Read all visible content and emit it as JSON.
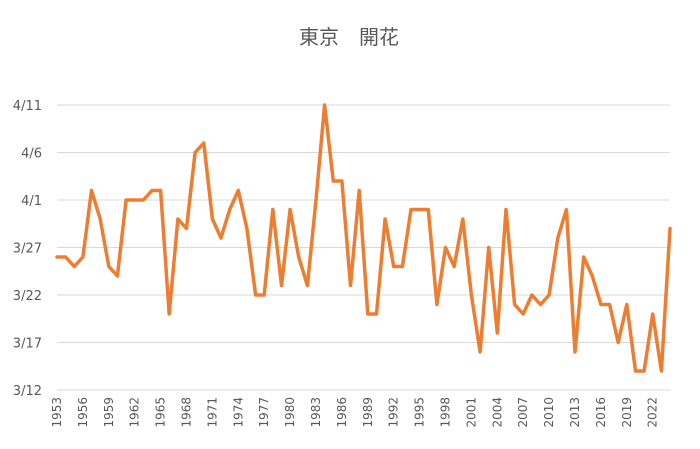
{
  "chart_data": {
    "type": "line",
    "title": "東京　開花",
    "xlabel": "",
    "ylabel": "",
    "x_tick_labels": [
      "1953",
      "1956",
      "1959",
      "1962",
      "1965",
      "1968",
      "1971",
      "1974",
      "1977",
      "1980",
      "1983",
      "1986",
      "1989",
      "1992",
      "1995",
      "1998",
      "2001",
      "2004",
      "2007",
      "2010",
      "2013",
      "2016",
      "2019",
      "2022"
    ],
    "y_tick_labels": [
      "3/12",
      "3/17",
      "3/22",
      "3/27",
      "4/1",
      "4/6",
      "4/11"
    ],
    "y_tick_values": [
      71,
      76,
      81,
      86,
      91,
      96,
      101
    ],
    "ylim": [
      71,
      101
    ],
    "xlim": [
      1953,
      2024
    ],
    "grid": true,
    "legend": "none",
    "color": "#ed7d31",
    "series": [
      {
        "x": [
          1953,
          1954,
          1955,
          1956,
          1957,
          1958,
          1959,
          1960,
          1961,
          1962,
          1963,
          1964,
          1965,
          1966,
          1967,
          1968,
          1969,
          1970,
          1971,
          1972,
          1973,
          1974,
          1975,
          1976,
          1977,
          1978,
          1979,
          1980,
          1981,
          1982,
          1983,
          1984,
          1985,
          1986,
          1987,
          1988,
          1989,
          1990,
          1991,
          1992,
          1993,
          1994,
          1995,
          1996,
          1997,
          1998,
          1999,
          2000,
          2001,
          2002,
          2003,
          2004,
          2005,
          2006,
          2007,
          2008,
          2009,
          2010,
          2011,
          2012,
          2013,
          2014,
          2015,
          2016,
          2017,
          2018,
          2019,
          2020,
          2021,
          2022,
          2023,
          2024
        ],
        "values": [
          85,
          85,
          84,
          85,
          92,
          89,
          84,
          83,
          91,
          91,
          91,
          92,
          92,
          79,
          89,
          88,
          96,
          97,
          89,
          87,
          90,
          92,
          88,
          81,
          81,
          90,
          82,
          90,
          85,
          82,
          91,
          101,
          93,
          93,
          82,
          92,
          79,
          79,
          89,
          84,
          84,
          90,
          90,
          90,
          80,
          86,
          84,
          89,
          81,
          75,
          86,
          77,
          90,
          80,
          79,
          81,
          80,
          81,
          87,
          90,
          75,
          85,
          83,
          80,
          80,
          76,
          80,
          73,
          73,
          79,
          73,
          88
        ]
      }
    ]
  }
}
